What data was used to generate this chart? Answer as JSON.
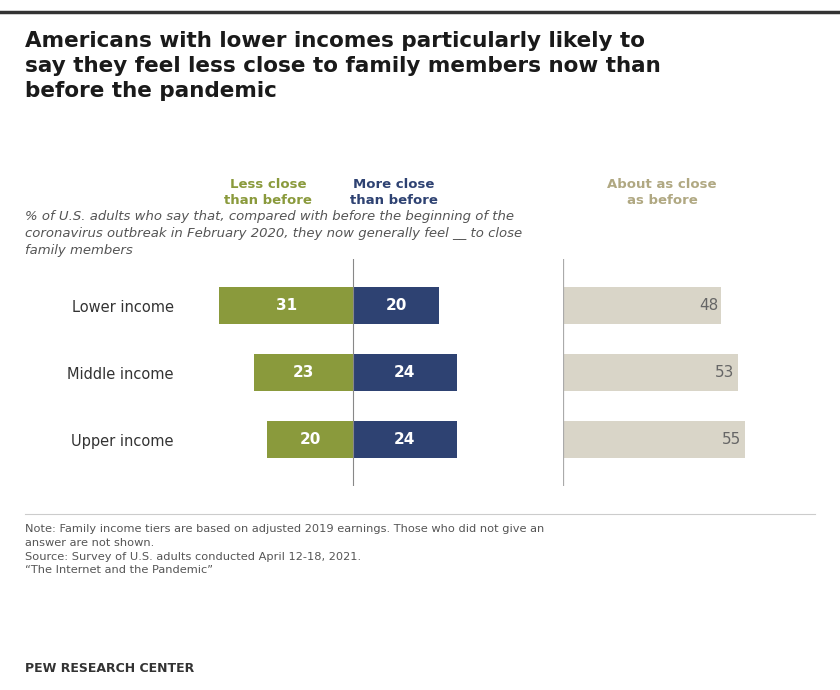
{
  "title": "Americans with lower incomes particularly likely to\nsay they feel less close to family members now than\nbefore the pandemic",
  "subtitle": "% of U.S. adults who say that, compared with before the beginning of the\ncoronavirus outbreak in February 2020, they now generally feel __ to close\nfamily members",
  "categories": [
    "Upper income",
    "Middle income",
    "Lower income"
  ],
  "less_close": [
    20,
    23,
    31
  ],
  "more_close": [
    24,
    24,
    20
  ],
  "about_as_close": [
    55,
    53,
    48
  ],
  "less_close_color": "#8a9a3c",
  "more_close_color": "#2e4272",
  "about_as_close_color": "#d9d5c8",
  "less_close_label": "Less close\nthan before",
  "more_close_label": "More close\nthan before",
  "about_as_close_label": "About as close\nas before",
  "note_text": "Note: Family income tiers are based on adjusted 2019 earnings. Those who did not give an\nanswer are not shown.\nSource: Survey of U.S. adults conducted April 12-18, 2021.\n“The Internet and the Pandemic”",
  "pew_label": "PEW RESEARCH CENTER",
  "bar_height": 0.55,
  "background_color": "#ffffff"
}
